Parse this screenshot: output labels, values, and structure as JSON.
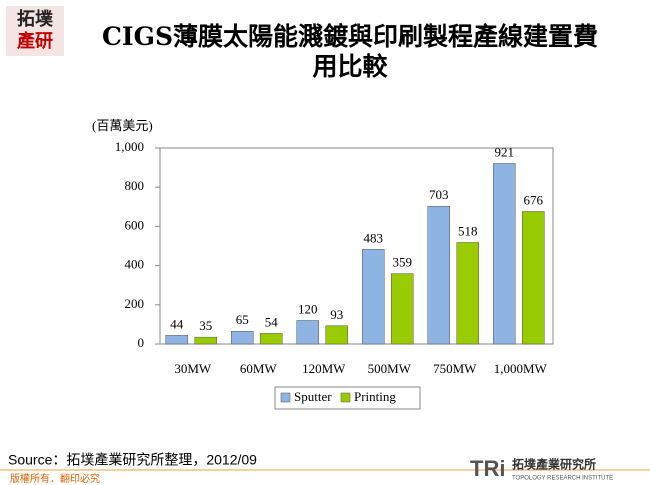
{
  "logo": {
    "line1": "拓墣",
    "line2": "產研"
  },
  "chart_data": {
    "type": "bar",
    "title": "CIGS薄膜太陽能濺鍍與印刷製程產線建置費用比較",
    "y_axis_label": "(百萬美元)",
    "categories": [
      "30MW",
      "60MW",
      "120MW",
      "500MW",
      "750MW",
      "1,000MW"
    ],
    "series": [
      {
        "name": "Sputter",
        "color": "#8db4e2",
        "values": [
          44,
          65,
          120,
          483,
          703,
          921
        ]
      },
      {
        "name": "Printing",
        "color": "#99cc00",
        "values": [
          35,
          54,
          93,
          359,
          518,
          676
        ]
      }
    ],
    "ylim": [
      0,
      1000
    ],
    "yticks": [
      0,
      200,
      400,
      600,
      800,
      {
        "value": 1000,
        "label": "1,000"
      }
    ]
  },
  "source": "Source：拓墣產業研究所整理，2012/09",
  "copyright": "版權所有．翻印必究",
  "footer_logo": {
    "mark": "TRi",
    "name": "拓墣產業研究所",
    "subtitle": "TOPOLOGY RESEARCH INSTITUTE"
  }
}
